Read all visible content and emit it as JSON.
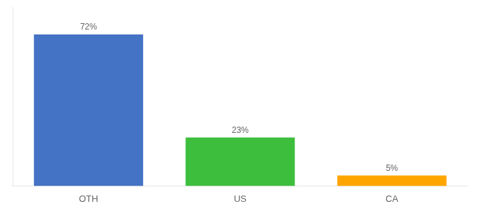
{
  "chart_data": {
    "type": "bar",
    "categories": [
      "OTH",
      "US",
      "CA"
    ],
    "values": [
      72,
      23,
      5
    ],
    "value_labels": [
      "72%",
      "23%",
      "5%"
    ],
    "colors": [
      "#4472C4",
      "#3DBE3D",
      "#FFA500"
    ],
    "ylim": [
      0,
      85
    ],
    "grid": false,
    "tick_labels": "x",
    "data_labels": true
  }
}
